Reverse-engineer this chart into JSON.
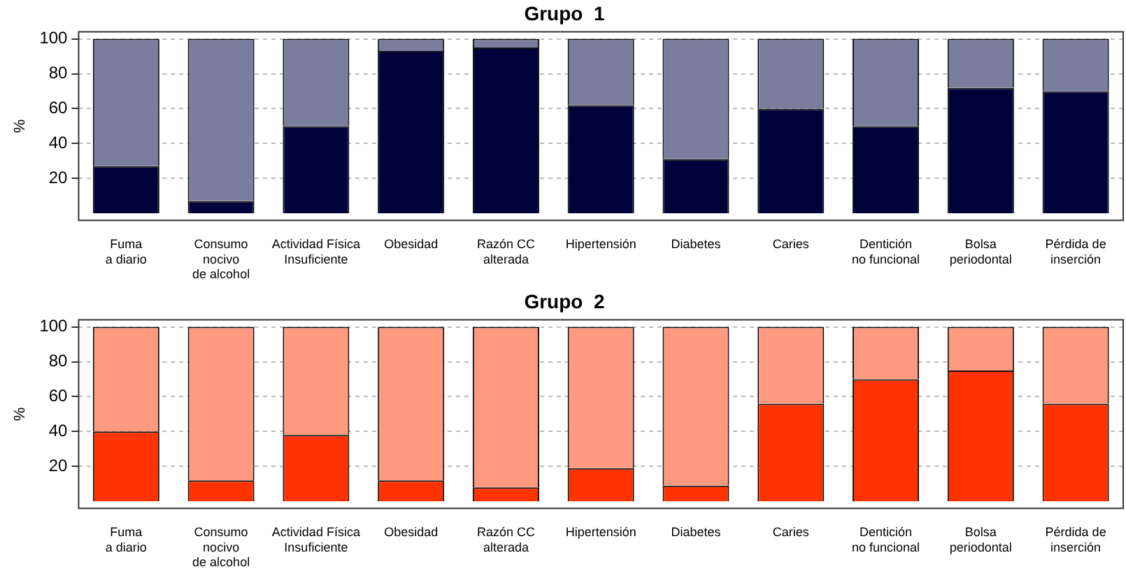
{
  "chart_data": [
    {
      "type": "bar",
      "title": "Grupo  1",
      "ylabel": "%",
      "stacked": true,
      "grid": "y",
      "ylim": [
        -4,
        104
      ],
      "yticks": [
        20,
        40,
        60,
        80,
        100
      ],
      "categories": [
        "Fuma\na diario",
        "Consumo\nnocivo\nde alcohol",
        "Actividad Física\nInsuficiente",
        "Obesidad",
        "Razón CC\nalterada",
        "Hipertensión",
        "Diabetes",
        "Caries",
        "Dentición\nno funcional",
        "Bolsa\nperiodontal",
        "Pérdida de\ninserción"
      ],
      "series": [
        {
          "color": "#00003a",
          "values": [
            27,
            7,
            50,
            93,
            95,
            62,
            31,
            60,
            50,
            72,
            70
          ]
        },
        {
          "color": "#7b7d9f",
          "values": [
            73,
            93,
            50,
            7,
            5,
            38,
            69,
            40,
            50,
            28,
            30
          ]
        }
      ]
    },
    {
      "type": "bar",
      "title": "Grupo  2",
      "ylabel": "%",
      "stacked": true,
      "grid": "y",
      "ylim": [
        -4,
        104
      ],
      "yticks": [
        20,
        40,
        60,
        80,
        100
      ],
      "categories": [
        "Fuma\na diario",
        "Consumo\nnocivo\nde alcohol",
        "Actividad Física\nInsuficiente",
        "Obesidad",
        "Razón CC\nalterada",
        "Hipertensión",
        "Diabetes",
        "Caries",
        "Dentición\nno funcional",
        "Bolsa\nperiodontal",
        "Pérdida de\ninserción"
      ],
      "series": [
        {
          "color": "#ff3300",
          "values": [
            40,
            12,
            38,
            12,
            8,
            19,
            9,
            56,
            70,
            75,
            56
          ]
        },
        {
          "color": "#ff9a80",
          "values": [
            60,
            88,
            62,
            88,
            92,
            81,
            91,
            44,
            30,
            25,
            44
          ]
        }
      ]
    }
  ]
}
